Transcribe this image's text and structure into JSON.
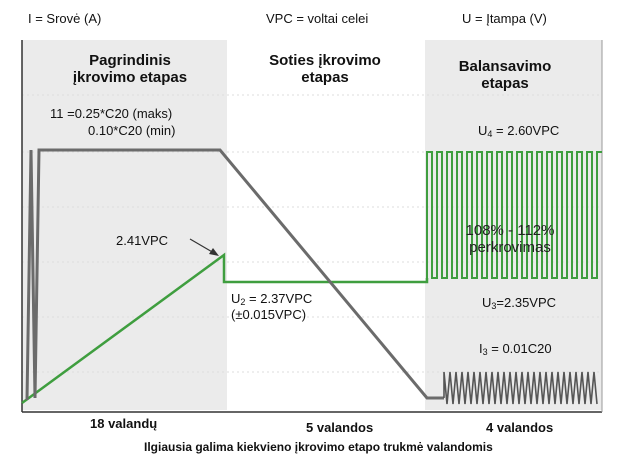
{
  "legend": {
    "current": "I = Srovė (A)",
    "vpc": "VPC = voltai celei",
    "voltage": "U = Įtampa (V)"
  },
  "phases": {
    "main_line1": "Pagrindinis",
    "main_line2": "įkrovimo etapas",
    "absorption_line1": "Soties įkrovimo",
    "absorption_line2": "etapas",
    "balance_line1": "Balansavimo",
    "balance_line2": "etapas"
  },
  "labels": {
    "i1_max": "11 =0.25*C20 (maks)",
    "i1_min": "0.10*C20 (min)",
    "u_peak": "2.41VPC",
    "u2_prefix": "U",
    "u2_sub": "2",
    "u2_value": " = 2.37VPC",
    "u2_tol": "(±0.015VPC)",
    "u4_prefix": "U",
    "u4_sub": "4",
    "u4_value": " = 2.60VPC",
    "u3_prefix": "U",
    "u3_sub": "3",
    "u3_value": "=2.35VPC",
    "i3_prefix": "I",
    "i3_sub": "3",
    "i3_value": " = 0.01C20",
    "overcharge_line1": "108% - 112%",
    "overcharge_line2": "perkrovimas"
  },
  "durations": {
    "main": "18 valandų",
    "absorption": "5 valandos",
    "balance": "4 valandos"
  },
  "caption": "Ilgiausia galima kiekvieno įkrovimo etapo trukmė valandomis",
  "colors": {
    "current_line": "#6b6b6b",
    "voltage_line": "#3f9e3f",
    "phase_shade": "#ebebeb",
    "grid": "#dcdcdc"
  }
}
